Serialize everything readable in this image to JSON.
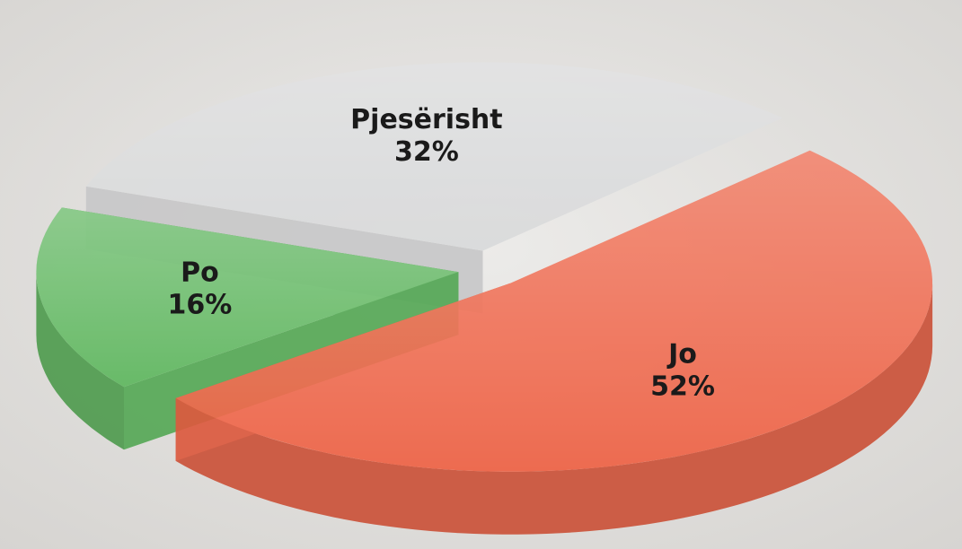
{
  "chart_data": {
    "type": "pie",
    "categories": [
      "Pjesërisht",
      "Jo",
      "Po"
    ],
    "values": [
      32,
      52,
      16
    ],
    "value_labels": [
      "32%",
      "52%",
      "16%"
    ],
    "colors": [
      "#d9dadb",
      "#ef6245",
      "#5fb85f"
    ]
  }
}
